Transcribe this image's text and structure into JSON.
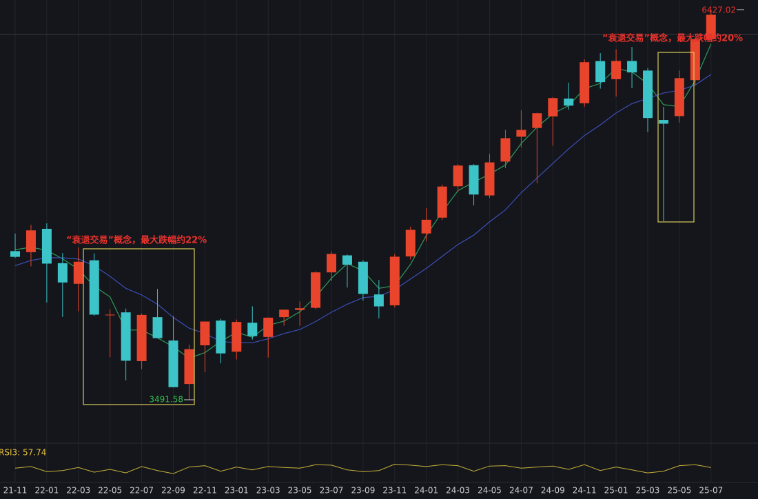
{
  "chart_data": {
    "type": "candlestick",
    "categories": [
      "21-11",
      null,
      "22-01",
      null,
      "22-03",
      null,
      "22-05",
      null,
      "22-07",
      null,
      "22-09",
      null,
      "22-11",
      null,
      "23-01",
      null,
      "23-03",
      null,
      "23-05",
      null,
      "23-07",
      null,
      "23-09",
      null,
      "23-11",
      null,
      "24-01",
      null,
      "24-03",
      null,
      "24-05",
      null,
      "24-07",
      null,
      "24-09",
      null,
      "24-11",
      null,
      "25-01",
      null,
      "25-03",
      null,
      "25-05",
      null,
      "25-07"
    ],
    "open": [
      4610,
      4602,
      4778,
      4519,
      4364,
      4541,
      4130,
      4149,
      3782,
      4113,
      3937,
      3610,
      3901,
      4087,
      3853,
      4071,
      3964,
      4113,
      4167,
      4183,
      4450,
      4578,
      4530,
      4284,
      4202,
      4570,
      4743,
      4862,
      5098,
      5257,
      5029,
      5284,
      5471,
      5537,
      5624,
      5758,
      5723,
      6040,
      5904,
      6041,
      5969,
      5597,
      5626,
      5897,
      6205
    ],
    "high": [
      4743,
      4808,
      4819,
      4595,
      4637,
      4593,
      4170,
      4177,
      4140,
      4325,
      4119,
      3906,
      4080,
      4101,
      4095,
      4195,
      4111,
      4170,
      4231,
      4458,
      4608,
      4584,
      4542,
      4393,
      4588,
      4794,
      4932,
      5111,
      5265,
      5264,
      5342,
      5523,
      5669,
      5651,
      5768,
      5878,
      6053,
      6100,
      6129,
      6147,
      5987,
      5696,
      5969,
      6215,
      6427.02
    ],
    "low": [
      4560,
      4495,
      4223,
      4115,
      4157,
      4124,
      3811,
      3637,
      3722,
      3955,
      3585,
      3491.58,
      3699,
      3765,
      3795,
      3944,
      3809,
      4049,
      4048,
      4172,
      4385,
      4336,
      4238,
      4104,
      4187,
      4547,
      4683,
      4845,
      5057,
      4954,
      5011,
      5234,
      5390,
      5120,
      5403,
      5674,
      5697,
      5833,
      5773,
      5837,
      5505,
      4835,
      5578,
      5862,
      6201
    ],
    "close": [
      4567,
      4766,
      4516,
      4374,
      4530,
      4132,
      4132,
      3785,
      4130,
      3955,
      3586,
      3872,
      4080,
      3840,
      4077,
      3970,
      4109,
      4169,
      4180,
      4450,
      4589,
      4508,
      4288,
      4194,
      4568,
      4770,
      4846,
      5096,
      5254,
      5036,
      5278,
      5460,
      5522,
      5648,
      5762,
      5705,
      6032,
      5882,
      6041,
      5955,
      5612,
      5569,
      5912,
      6205,
      6389
    ],
    "up_color": "#e8452c",
    "down_color": "#3cc4c8",
    "ylim": [
      3180,
      6500
    ],
    "moving_averages": [
      {
        "color": "#2e9a5a",
        "values": [
          4620,
          4640,
          4616,
          4552,
          4473,
          4345,
          4265,
          4016,
          4016,
          3957,
          3890,
          3804,
          3846,
          3931,
          3999,
          3962,
          4052,
          4083,
          4153,
          4266,
          4406,
          4516,
          4462,
          4330,
          4350,
          4511,
          4728,
          4904,
          5065,
          5129,
          5189,
          5258,
          5420,
          5543,
          5644,
          5705,
          5833,
          5873,
          5985,
          5959,
          5869,
          5712,
          5698,
          5895,
          6169
        ]
      },
      {
        "color": "#3b4fb8",
        "values": [
          4500,
          4540,
          4560,
          4560,
          4550,
          4500,
          4420,
          4330,
          4280,
          4210,
          4110,
          4030,
          3990,
          3930,
          3920,
          3920,
          3950,
          3990,
          4020,
          4080,
          4150,
          4210,
          4260,
          4270,
          4320,
          4400,
          4480,
          4570,
          4660,
          4730,
          4830,
          4920,
          5050,
          5160,
          5270,
          5380,
          5480,
          5560,
          5650,
          5720,
          5760,
          5800,
          5820,
          5860,
          5940
        ]
      }
    ],
    "max_label": "6427.02",
    "min_label": "3491.58",
    "annotations": [
      "“衰退交易”概念，最大跌幅约22%",
      "“衰退交易”概念，最大跌幅约20%"
    ],
    "rsi": {
      "label": "RSI3: 57.74",
      "color": "#c8b23a",
      "ylim": [
        0,
        100
      ],
      "values": [
        55,
        62,
        40,
        45,
        58,
        38,
        50,
        35,
        62,
        45,
        32,
        60,
        66,
        42,
        60,
        48,
        62,
        58,
        55,
        70,
        68,
        48,
        40,
        45,
        72,
        68,
        62,
        70,
        66,
        42,
        64,
        66,
        55,
        60,
        64,
        50,
        70,
        45,
        60,
        48,
        35,
        42,
        66,
        70,
        57.74
      ]
    }
  }
}
